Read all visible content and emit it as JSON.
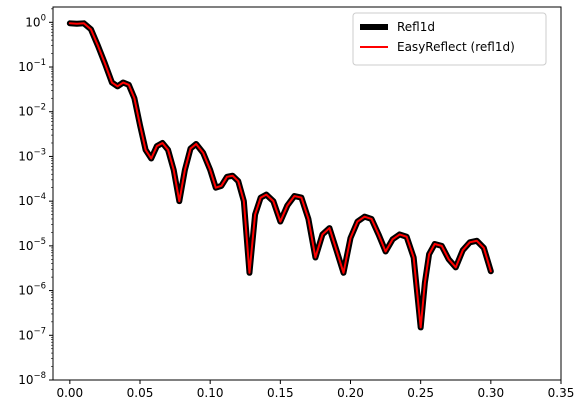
{
  "chart_data": {
    "type": "line",
    "title": "",
    "xlabel": "",
    "ylabel": "",
    "xlim": [
      -0.012,
      0.35
    ],
    "ylim": [
      1e-08,
      2.2
    ],
    "yscale": "log",
    "grid": false,
    "legend_position": "top-right",
    "x_ticks": [
      0.0,
      0.05,
      0.1,
      0.15,
      0.2,
      0.25,
      0.3,
      0.35
    ],
    "x_tick_labels": [
      "0.00",
      "0.05",
      "0.10",
      "0.15",
      "0.20",
      "0.25",
      "0.30",
      "0.35"
    ],
    "y_tick_exponents": [
      -8,
      -7,
      -6,
      -5,
      -4,
      -3,
      -2,
      -1,
      0
    ],
    "y_tick_base": "10",
    "series": [
      {
        "name": "Refl1d",
        "color": "#000000",
        "x": [
          0.0,
          0.005,
          0.01,
          0.015,
          0.02,
          0.025,
          0.03,
          0.034,
          0.038,
          0.042,
          0.046,
          0.05,
          0.054,
          0.058,
          0.062,
          0.066,
          0.07,
          0.074,
          0.078,
          0.082,
          0.086,
          0.09,
          0.095,
          0.1,
          0.104,
          0.108,
          0.112,
          0.116,
          0.12,
          0.124,
          0.128,
          0.132,
          0.136,
          0.14,
          0.145,
          0.15,
          0.155,
          0.16,
          0.165,
          0.17,
          0.175,
          0.18,
          0.185,
          0.19,
          0.195,
          0.2,
          0.205,
          0.21,
          0.215,
          0.22,
          0.225,
          0.23,
          0.235,
          0.24,
          0.245,
          0.25,
          0.253,
          0.256,
          0.26,
          0.265,
          0.27,
          0.275,
          0.28,
          0.285,
          0.29,
          0.295,
          0.3
        ],
        "y": [
          0.95,
          0.93,
          0.95,
          0.7,
          0.3,
          0.12,
          0.045,
          0.037,
          0.045,
          0.04,
          0.02,
          0.005,
          0.0014,
          0.0009,
          0.0017,
          0.002,
          0.0014,
          0.0005,
          0.0001,
          0.0005,
          0.0015,
          0.0019,
          0.0012,
          0.0005,
          0.0002,
          0.00022,
          0.00035,
          0.00037,
          0.00028,
          0.0001,
          2.5e-06,
          5e-05,
          0.00012,
          0.00014,
          0.0001,
          3.5e-05,
          8e-05,
          0.00013,
          0.00012,
          4e-05,
          5.5e-06,
          1.8e-05,
          2.5e-05,
          8e-06,
          2.5e-06,
          1.5e-05,
          3.5e-05,
          4.5e-05,
          4e-05,
          1.8e-05,
          7.5e-06,
          1.4e-05,
          1.8e-05,
          1.6e-05,
          5.5e-06,
          1.5e-07,
          1.5e-06,
          6.5e-06,
          1.1e-05,
          1e-05,
          5e-06,
          3.3e-06,
          8e-06,
          1.2e-05,
          1.3e-05,
          9e-06,
          2.7e-06
        ]
      },
      {
        "name": "EasyReflect (refl1d)",
        "color": "#ff0000",
        "x": [
          0.0,
          0.005,
          0.01,
          0.015,
          0.02,
          0.025,
          0.03,
          0.034,
          0.038,
          0.042,
          0.046,
          0.05,
          0.054,
          0.058,
          0.062,
          0.066,
          0.07,
          0.074,
          0.078,
          0.082,
          0.086,
          0.09,
          0.095,
          0.1,
          0.104,
          0.108,
          0.112,
          0.116,
          0.12,
          0.124,
          0.128,
          0.132,
          0.136,
          0.14,
          0.145,
          0.15,
          0.155,
          0.16,
          0.165,
          0.17,
          0.175,
          0.18,
          0.185,
          0.19,
          0.195,
          0.2,
          0.205,
          0.21,
          0.215,
          0.22,
          0.225,
          0.23,
          0.235,
          0.24,
          0.245,
          0.25,
          0.253,
          0.256,
          0.26,
          0.265,
          0.27,
          0.275,
          0.28,
          0.285,
          0.29,
          0.295,
          0.3
        ],
        "y": [
          0.95,
          0.93,
          0.95,
          0.7,
          0.3,
          0.12,
          0.045,
          0.037,
          0.045,
          0.04,
          0.02,
          0.005,
          0.0014,
          0.0009,
          0.0017,
          0.002,
          0.0014,
          0.0005,
          0.0001,
          0.0005,
          0.0015,
          0.0019,
          0.0012,
          0.0005,
          0.0002,
          0.00022,
          0.00035,
          0.00037,
          0.00028,
          0.0001,
          2.5e-06,
          5e-05,
          0.00012,
          0.00014,
          0.0001,
          3.5e-05,
          8e-05,
          0.00013,
          0.00012,
          4e-05,
          5.5e-06,
          1.8e-05,
          2.5e-05,
          8e-06,
          2.5e-06,
          1.5e-05,
          3.5e-05,
          4.5e-05,
          4e-05,
          1.8e-05,
          7.5e-06,
          1.4e-05,
          1.8e-05,
          1.6e-05,
          5.5e-06,
          1.5e-07,
          1.5e-06,
          6.5e-06,
          1.1e-05,
          1e-05,
          5e-06,
          3.3e-06,
          8e-06,
          1.2e-05,
          1.3e-05,
          9e-06,
          2.7e-06
        ]
      }
    ]
  }
}
